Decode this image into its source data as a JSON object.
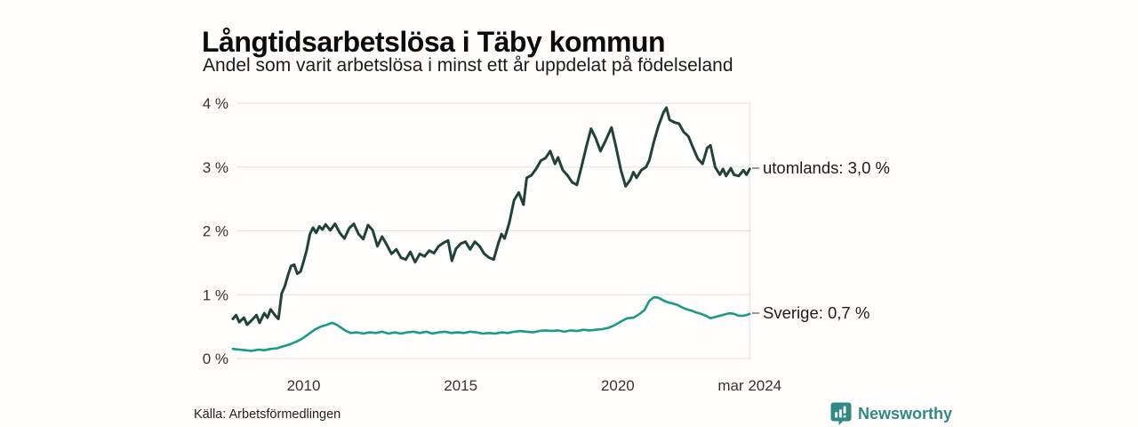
{
  "header": {
    "title": "Långtidsarbetslösa i Täby kommun",
    "subtitle": "Andel som varit arbetslösa i minst ett år uppdelat på födelseland"
  },
  "footer": {
    "source": "Källa: Arbetsförmedlingen",
    "brand": "Newsworthy"
  },
  "colors": {
    "utomlands_line": "#1f4338",
    "sverige_line": "#189a88",
    "gridline": "#e4e4e4",
    "tick_text": "#333333",
    "brand_teal": "#2f8a84",
    "label_connector": "#9a9a9a"
  },
  "chart_data": {
    "type": "line",
    "title": "Långtidsarbetslösa i Täby kommun",
    "subtitle": "Andel som varit arbetslösa i minst ett år uppdelat på födelseland",
    "xlabel": "",
    "ylabel": "",
    "ylim": [
      0,
      4
    ],
    "xlim": [
      2007.75,
      2024.25
    ],
    "grid": "horizontal",
    "legend_position": "right-end-labels",
    "yticks": [
      {
        "value": 0,
        "label": "0 %"
      },
      {
        "value": 1,
        "label": "1 %"
      },
      {
        "value": 2,
        "label": "2 %"
      },
      {
        "value": 3,
        "label": "3 %"
      },
      {
        "value": 4,
        "label": "4 %"
      }
    ],
    "xticks": [
      {
        "value": 2010,
        "label": "2010",
        "vline": false
      },
      {
        "value": 2015,
        "label": "2015",
        "vline": false
      },
      {
        "value": 2020,
        "label": "2020",
        "vline": false
      },
      {
        "value": 2024.2,
        "label": "mar 2024",
        "vline": true
      }
    ],
    "series": [
      {
        "name": "utomlands",
        "label": "utomlands: 3,0 %",
        "end_value": "3,0 %",
        "color": "#1f4338",
        "points": [
          [
            2007.75,
            0.62
          ],
          [
            2007.85,
            0.68
          ],
          [
            2007.95,
            0.57
          ],
          [
            2008.1,
            0.64
          ],
          [
            2008.2,
            0.53
          ],
          [
            2008.35,
            0.6
          ],
          [
            2008.5,
            0.68
          ],
          [
            2008.6,
            0.56
          ],
          [
            2008.75,
            0.71
          ],
          [
            2008.85,
            0.64
          ],
          [
            2008.95,
            0.77
          ],
          [
            2009.1,
            0.67
          ],
          [
            2009.2,
            0.62
          ],
          [
            2009.3,
            1.02
          ],
          [
            2009.4,
            1.13
          ],
          [
            2009.5,
            1.3
          ],
          [
            2009.6,
            1.45
          ],
          [
            2009.7,
            1.47
          ],
          [
            2009.8,
            1.33
          ],
          [
            2009.9,
            1.36
          ],
          [
            2010.0,
            1.52
          ],
          [
            2010.1,
            1.7
          ],
          [
            2010.2,
            1.95
          ],
          [
            2010.3,
            2.05
          ],
          [
            2010.4,
            1.97
          ],
          [
            2010.5,
            2.07
          ],
          [
            2010.6,
            2.02
          ],
          [
            2010.7,
            2.1
          ],
          [
            2010.85,
            2.01
          ],
          [
            2011.0,
            2.11
          ],
          [
            2011.15,
            1.97
          ],
          [
            2011.3,
            1.88
          ],
          [
            2011.45,
            2.04
          ],
          [
            2011.6,
            2.11
          ],
          [
            2011.75,
            1.95
          ],
          [
            2011.9,
            1.87
          ],
          [
            2012.05,
            2.09
          ],
          [
            2012.2,
            2.01
          ],
          [
            2012.35,
            1.76
          ],
          [
            2012.5,
            1.91
          ],
          [
            2012.65,
            1.78
          ],
          [
            2012.8,
            1.64
          ],
          [
            2012.95,
            1.71
          ],
          [
            2013.1,
            1.58
          ],
          [
            2013.25,
            1.55
          ],
          [
            2013.4,
            1.67
          ],
          [
            2013.55,
            1.51
          ],
          [
            2013.7,
            1.64
          ],
          [
            2013.85,
            1.6
          ],
          [
            2014.0,
            1.69
          ],
          [
            2014.15,
            1.65
          ],
          [
            2014.3,
            1.76
          ],
          [
            2014.45,
            1.81
          ],
          [
            2014.6,
            1.85
          ],
          [
            2014.72,
            1.53
          ],
          [
            2014.85,
            1.72
          ],
          [
            2015.0,
            1.8
          ],
          [
            2015.15,
            1.83
          ],
          [
            2015.3,
            1.71
          ],
          [
            2015.45,
            1.83
          ],
          [
            2015.6,
            1.76
          ],
          [
            2015.75,
            1.64
          ],
          [
            2015.9,
            1.58
          ],
          [
            2016.05,
            1.55
          ],
          [
            2016.2,
            1.81
          ],
          [
            2016.3,
            1.95
          ],
          [
            2016.4,
            1.88
          ],
          [
            2016.55,
            2.13
          ],
          [
            2016.7,
            2.48
          ],
          [
            2016.85,
            2.6
          ],
          [
            2017.0,
            2.41
          ],
          [
            2017.1,
            2.83
          ],
          [
            2017.25,
            2.87
          ],
          [
            2017.4,
            2.97
          ],
          [
            2017.55,
            3.1
          ],
          [
            2017.7,
            3.14
          ],
          [
            2017.85,
            3.25
          ],
          [
            2018.0,
            3.05
          ],
          [
            2018.1,
            3.15
          ],
          [
            2018.25,
            2.95
          ],
          [
            2018.4,
            2.87
          ],
          [
            2018.55,
            2.76
          ],
          [
            2018.7,
            2.72
          ],
          [
            2018.85,
            3.01
          ],
          [
            2019.0,
            3.32
          ],
          [
            2019.15,
            3.6
          ],
          [
            2019.3,
            3.45
          ],
          [
            2019.45,
            3.25
          ],
          [
            2019.6,
            3.4
          ],
          [
            2019.8,
            3.62
          ],
          [
            2019.95,
            3.3
          ],
          [
            2020.1,
            2.95
          ],
          [
            2020.25,
            2.7
          ],
          [
            2020.4,
            2.8
          ],
          [
            2020.5,
            2.92
          ],
          [
            2020.6,
            2.83
          ],
          [
            2020.75,
            2.95
          ],
          [
            2020.9,
            3.0
          ],
          [
            2021.0,
            3.1
          ],
          [
            2021.15,
            3.4
          ],
          [
            2021.3,
            3.65
          ],
          [
            2021.45,
            3.85
          ],
          [
            2021.55,
            3.93
          ],
          [
            2021.65,
            3.74
          ],
          [
            2021.8,
            3.7
          ],
          [
            2021.95,
            3.68
          ],
          [
            2022.1,
            3.55
          ],
          [
            2022.25,
            3.48
          ],
          [
            2022.4,
            3.3
          ],
          [
            2022.55,
            3.13
          ],
          [
            2022.7,
            3.05
          ],
          [
            2022.85,
            3.3
          ],
          [
            2022.95,
            3.34
          ],
          [
            2023.1,
            3.0
          ],
          [
            2023.25,
            2.88
          ],
          [
            2023.35,
            2.97
          ],
          [
            2023.45,
            2.86
          ],
          [
            2023.6,
            2.98
          ],
          [
            2023.7,
            2.88
          ],
          [
            2023.85,
            2.86
          ],
          [
            2024.0,
            2.95
          ],
          [
            2024.1,
            2.88
          ],
          [
            2024.2,
            2.97
          ]
        ]
      },
      {
        "name": "Sverige",
        "label": "Sverige: 0,7 %",
        "end_value": "0,7 %",
        "color": "#189a88",
        "points": [
          [
            2007.75,
            0.15
          ],
          [
            2007.95,
            0.14
          ],
          [
            2008.15,
            0.13
          ],
          [
            2008.35,
            0.12
          ],
          [
            2008.55,
            0.14
          ],
          [
            2008.75,
            0.13
          ],
          [
            2008.95,
            0.15
          ],
          [
            2009.15,
            0.16
          ],
          [
            2009.35,
            0.19
          ],
          [
            2009.55,
            0.22
          ],
          [
            2009.75,
            0.26
          ],
          [
            2009.95,
            0.31
          ],
          [
            2010.15,
            0.38
          ],
          [
            2010.35,
            0.45
          ],
          [
            2010.55,
            0.5
          ],
          [
            2010.75,
            0.53
          ],
          [
            2010.9,
            0.56
          ],
          [
            2011.05,
            0.53
          ],
          [
            2011.2,
            0.48
          ],
          [
            2011.35,
            0.43
          ],
          [
            2011.5,
            0.4
          ],
          [
            2011.7,
            0.41
          ],
          [
            2011.9,
            0.39
          ],
          [
            2012.1,
            0.41
          ],
          [
            2012.3,
            0.4
          ],
          [
            2012.5,
            0.42
          ],
          [
            2012.7,
            0.39
          ],
          [
            2012.9,
            0.41
          ],
          [
            2013.1,
            0.39
          ],
          [
            2013.3,
            0.41
          ],
          [
            2013.5,
            0.42
          ],
          [
            2013.7,
            0.4
          ],
          [
            2013.9,
            0.42
          ],
          [
            2014.1,
            0.39
          ],
          [
            2014.3,
            0.41
          ],
          [
            2014.5,
            0.42
          ],
          [
            2014.7,
            0.4
          ],
          [
            2014.9,
            0.41
          ],
          [
            2015.1,
            0.4
          ],
          [
            2015.3,
            0.42
          ],
          [
            2015.5,
            0.41
          ],
          [
            2015.7,
            0.39
          ],
          [
            2015.9,
            0.4
          ],
          [
            2016.1,
            0.39
          ],
          [
            2016.3,
            0.41
          ],
          [
            2016.5,
            0.4
          ],
          [
            2016.7,
            0.42
          ],
          [
            2016.9,
            0.43
          ],
          [
            2017.1,
            0.42
          ],
          [
            2017.3,
            0.41
          ],
          [
            2017.5,
            0.43
          ],
          [
            2017.7,
            0.44
          ],
          [
            2017.9,
            0.43
          ],
          [
            2018.1,
            0.44
          ],
          [
            2018.3,
            0.42
          ],
          [
            2018.5,
            0.44
          ],
          [
            2018.7,
            0.43
          ],
          [
            2018.9,
            0.45
          ],
          [
            2019.1,
            0.44
          ],
          [
            2019.3,
            0.45
          ],
          [
            2019.5,
            0.46
          ],
          [
            2019.7,
            0.48
          ],
          [
            2019.9,
            0.52
          ],
          [
            2020.1,
            0.58
          ],
          [
            2020.3,
            0.63
          ],
          [
            2020.5,
            0.64
          ],
          [
            2020.7,
            0.7
          ],
          [
            2020.85,
            0.76
          ],
          [
            2021.0,
            0.9
          ],
          [
            2021.15,
            0.96
          ],
          [
            2021.3,
            0.95
          ],
          [
            2021.45,
            0.91
          ],
          [
            2021.6,
            0.88
          ],
          [
            2021.75,
            0.86
          ],
          [
            2021.9,
            0.84
          ],
          [
            2022.05,
            0.8
          ],
          [
            2022.2,
            0.77
          ],
          [
            2022.35,
            0.75
          ],
          [
            2022.5,
            0.72
          ],
          [
            2022.65,
            0.7
          ],
          [
            2022.8,
            0.67
          ],
          [
            2022.95,
            0.63
          ],
          [
            2023.1,
            0.65
          ],
          [
            2023.25,
            0.67
          ],
          [
            2023.4,
            0.69
          ],
          [
            2023.55,
            0.71
          ],
          [
            2023.7,
            0.7
          ],
          [
            2023.85,
            0.67
          ],
          [
            2024.0,
            0.67
          ],
          [
            2024.1,
            0.68
          ],
          [
            2024.2,
            0.7
          ]
        ]
      }
    ],
    "source": "Källa: Arbetsförmedlingen"
  }
}
